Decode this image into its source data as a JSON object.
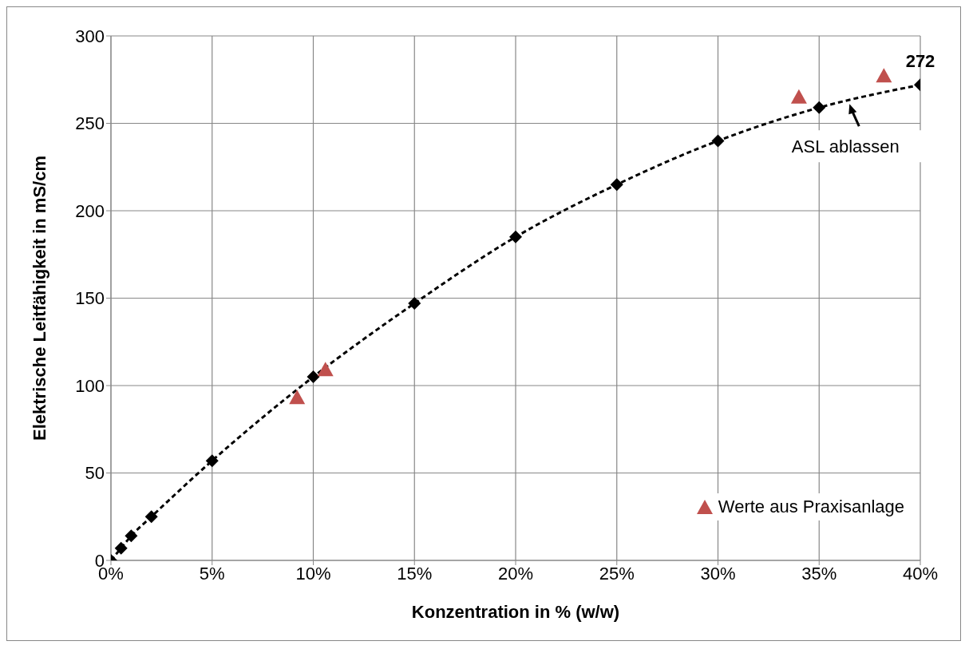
{
  "chart_data": {
    "type": "line",
    "xlabel": "Konzentration in % (w/w)",
    "ylabel": "Elektrische Leitfähigkeit in mS/cm",
    "xlim": [
      0,
      40
    ],
    "xticks": [
      {
        "value": 0,
        "label": "0%"
      },
      {
        "value": 5,
        "label": "5%"
      },
      {
        "value": 10,
        "label": "10%"
      },
      {
        "value": 15,
        "label": "15%"
      },
      {
        "value": 20,
        "label": "20%"
      },
      {
        "value": 25,
        "label": "25%"
      },
      {
        "value": 30,
        "label": "30%"
      },
      {
        "value": 35,
        "label": "35%"
      },
      {
        "value": 40,
        "label": "40%"
      }
    ],
    "ylim": [
      0,
      300
    ],
    "yticks": [
      0,
      50,
      100,
      150,
      200,
      250,
      300
    ],
    "grid": true,
    "legend": "bottom right",
    "series": [
      {
        "color": "#000000",
        "marker": "diamond",
        "line_style": "dashed",
        "x": [
          0,
          0.5,
          1,
          2,
          5,
          10,
          15,
          20,
          25,
          30,
          35,
          40
        ],
        "values": [
          0,
          7,
          14,
          25,
          57,
          105,
          147,
          185,
          215,
          240,
          259,
          272
        ],
        "value_labels": [
          null,
          null,
          null,
          null,
          null,
          null,
          null,
          null,
          null,
          null,
          null,
          "272"
        ]
      },
      {
        "type": "scatter",
        "name": "Werte aus Praxisanlage",
        "color": "#c0504d",
        "marker": "triangle",
        "x": [
          9.2,
          10.6,
          34,
          38.2
        ],
        "values": [
          93,
          109,
          265,
          277
        ]
      }
    ],
    "annotations": [
      {
        "text": "ASL ablassen",
        "x": 36.5,
        "y": 262
      }
    ]
  }
}
